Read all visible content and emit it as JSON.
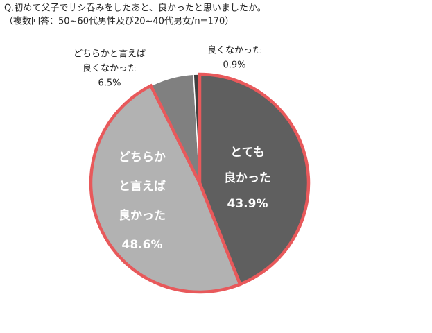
{
  "chart_data": {
    "type": "pie",
    "title": "Q.初めて父子でサシ呑みをしたあと、良かったと思いましたか。",
    "subtitle": "（複数回答：50~60代男性及び20~40代男女/n=170）",
    "categories": [
      [
        "とても",
        "良かった"
      ],
      [
        "どちらか",
        "と言えば",
        "良かった"
      ],
      [
        "どちらかと言えば",
        "良くなかった"
      ],
      [
        "良くなかった"
      ]
    ],
    "values": [
      43.9,
      48.6,
      6.5,
      0.9
    ],
    "value_labels": [
      "43.9%",
      "48.6%",
      "6.5%",
      "0.9%"
    ],
    "colors": [
      "#5f5f5f",
      "#b2b2b2",
      "#808080",
      "#404040"
    ],
    "edgecolors": [
      "#e8595b",
      "#e8595b",
      null,
      null
    ]
  }
}
